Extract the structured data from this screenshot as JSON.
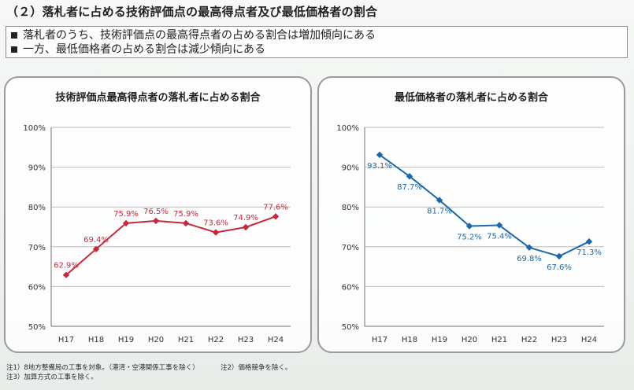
{
  "header": {
    "title": "（２）落札者に占める技術評価点の最高得点者及び最低価格者の割合"
  },
  "summary": {
    "bullets": [
      "落札者のうち、技術評価点の最高得点者の占める割合は増加傾向にある",
      "一方、最低価格者の占める割合は減少傾向にある"
    ]
  },
  "footer": {
    "notes": [
      "注1）8地方整備局の工事を対象。（港湾・空港関係工事を除く）",
      "注2）価格競争を除く。",
      "注3）加算方式の工事を除く。"
    ]
  },
  "colors": {
    "left_series": "#c8283c",
    "right_series": "#1a68ac",
    "grid": "#bdbdbd",
    "axis": "#8a8a8a"
  },
  "chart_data": [
    {
      "type": "line",
      "title": "技術評価点最高得点者の落札者に占める割合",
      "categories": [
        "H17",
        "H18",
        "H19",
        "H20",
        "H21",
        "H22",
        "H23",
        "H24"
      ],
      "values": [
        62.9,
        69.4,
        75.9,
        76.5,
        75.9,
        73.6,
        74.9,
        77.6
      ],
      "labels": [
        "62.9%",
        "69.4%",
        "75.9%",
        "76.5%",
        "75.9%",
        "73.6%",
        "74.9%",
        "77.6%"
      ],
      "ylim": [
        50,
        100
      ],
      "yticks": [
        50,
        60,
        70,
        80,
        90,
        100
      ],
      "ytick_labels": [
        "50%",
        "60%",
        "70%",
        "80%",
        "90%",
        "100%"
      ],
      "grid": true,
      "label_position": "above"
    },
    {
      "type": "line",
      "title": "最低価格者の落札者に占める割合",
      "categories": [
        "H17",
        "H18",
        "H19",
        "H20",
        "H21",
        "H22",
        "H23",
        "H24"
      ],
      "values": [
        93.1,
        87.7,
        81.7,
        75.2,
        75.4,
        69.8,
        67.6,
        71.3
      ],
      "labels": [
        "93.1%",
        "87.7%",
        "81.7%",
        "75.2%",
        "75.4%",
        "69.8%",
        "67.6%",
        "71.3%"
      ],
      "ylim": [
        50,
        100
      ],
      "yticks": [
        50,
        60,
        70,
        80,
        90,
        100
      ],
      "ytick_labels": [
        "50%",
        "60%",
        "70%",
        "80%",
        "90%",
        "100%"
      ],
      "grid": true,
      "label_position": "below"
    }
  ]
}
